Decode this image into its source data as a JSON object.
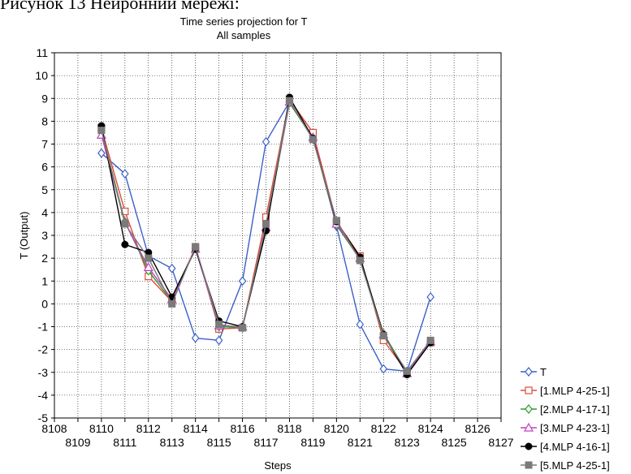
{
  "top_text": "Рисунок 13 Нейронний мережі:",
  "chart_data": {
    "type": "line",
    "title": "Time series projection for T",
    "subtitle": "All samples",
    "xlabel": "Steps",
    "ylabel": "T (Output)",
    "xlim": [
      8108,
      8127
    ],
    "ylim": [
      -5,
      11
    ],
    "x_ticks_top": [
      "8108",
      "8110",
      "8112",
      "8114",
      "8116",
      "8118",
      "8120",
      "8122",
      "8124",
      "8126"
    ],
    "x_ticks_bottom": [
      "8109",
      "8111",
      "8113",
      "8115",
      "8117",
      "8119",
      "8121",
      "8123",
      "8125",
      "8127"
    ],
    "y_ticks": [
      "11",
      "10",
      "9",
      "8",
      "7",
      "6",
      "5",
      "4",
      "3",
      "2",
      "1",
      "0",
      "-1",
      "-2",
      "-3",
      "-4",
      "-5"
    ],
    "grid": true,
    "legend_position": "bottom-right",
    "x": [
      8110,
      8111,
      8112,
      8113,
      8114,
      8115,
      8116,
      8117,
      8118,
      8119,
      8120,
      8121,
      8122,
      8123,
      8124
    ],
    "series": [
      {
        "name": "T",
        "color": "#3b5fc9",
        "marker": "diamond-open",
        "values": [
          6.6,
          5.7,
          2.1,
          1.55,
          -1.5,
          -1.6,
          1.0,
          7.1,
          8.85,
          7.3,
          3.4,
          -0.9,
          -2.85,
          -2.95,
          0.3
        ]
      },
      {
        "name": "[1.MLP 4-25-1]",
        "color": "#e04b3a",
        "marker": "square-open",
        "values": [
          7.7,
          4.05,
          1.2,
          0.1,
          2.5,
          -1.1,
          -1.05,
          3.8,
          8.95,
          7.5,
          3.6,
          2.1,
          -1.6,
          -3.0,
          -1.7
        ]
      },
      {
        "name": "[2.MLP 4-17-1]",
        "color": "#2f9a2f",
        "marker": "diamond-open",
        "values": [
          7.6,
          3.6,
          1.45,
          0.1,
          2.45,
          -1.0,
          -1.05,
          3.3,
          8.8,
          7.25,
          3.45,
          1.95,
          -1.3,
          -3.0,
          -1.65
        ]
      },
      {
        "name": "[3.MLP 4-23-1]",
        "color": "#c040c0",
        "marker": "triangle-open",
        "values": [
          7.4,
          3.55,
          1.6,
          0.2,
          2.4,
          -0.95,
          -1.0,
          3.35,
          8.85,
          7.3,
          3.5,
          2.0,
          -1.35,
          -3.05,
          -1.65
        ]
      },
      {
        "name": "[4.MLP 4-16-1]",
        "color": "#000000",
        "marker": "circle-filled",
        "values": [
          7.8,
          2.6,
          2.25,
          0.3,
          2.4,
          -0.75,
          -1.0,
          3.2,
          9.05,
          7.25,
          3.6,
          2.05,
          -1.35,
          -3.1,
          -1.7
        ]
      },
      {
        "name": "[5.MLP 4-25-1]",
        "color": "#7a7a7a",
        "marker": "square-filled",
        "values": [
          7.6,
          3.5,
          2.0,
          0.0,
          2.5,
          -0.9,
          -1.05,
          3.5,
          8.9,
          7.2,
          3.65,
          1.9,
          -1.4,
          -2.95,
          -1.6
        ]
      }
    ]
  }
}
